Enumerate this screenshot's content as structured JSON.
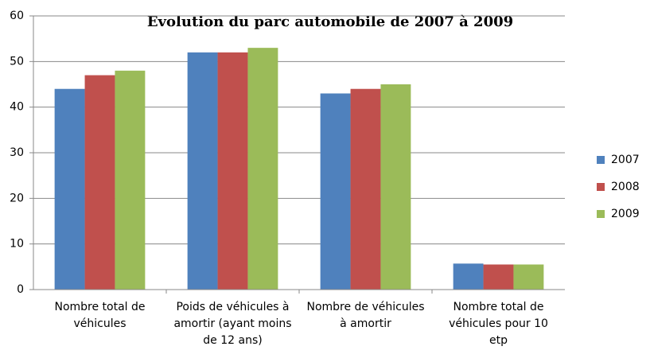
{
  "chart_data": {
    "type": "bar",
    "title": "Evolution du parc automobile de 2007 à 2009",
    "categories": [
      "Nombre total de véhicules",
      "Poids de véhicules à amortir (ayant moins de 12 ans)",
      "Nombre de véhicules à amortir",
      "Nombre total de véhicules pour 10 etp"
    ],
    "series": [
      {
        "name": "2007",
        "color": "#4f81bd",
        "values": [
          44,
          52,
          43,
          5.7
        ]
      },
      {
        "name": "2008",
        "color": "#c0504d",
        "values": [
          47,
          52,
          44,
          5.5
        ]
      },
      {
        "name": "2009",
        "color": "#9bbb59",
        "values": [
          48,
          53,
          45,
          5.5
        ]
      }
    ],
    "ylim": [
      0,
      60
    ],
    "yticks": [
      0,
      10,
      20,
      30,
      40,
      50,
      60
    ],
    "grid": true,
    "legend": "right"
  }
}
